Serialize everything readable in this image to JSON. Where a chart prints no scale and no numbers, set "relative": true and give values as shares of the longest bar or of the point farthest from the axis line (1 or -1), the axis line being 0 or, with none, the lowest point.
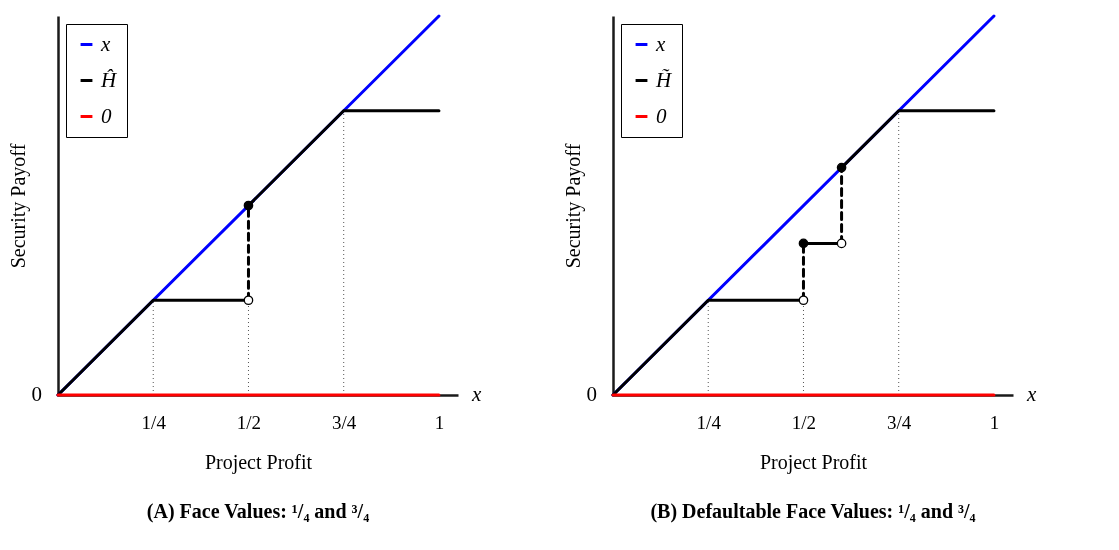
{
  "chart_data": [
    {
      "type": "line",
      "title": "(A)   Face Values: ¹/₄ and ³/₄",
      "xlabel": "Project Profit",
      "ylabel": "Security Payoff",
      "relative": true,
      "xlim": [
        0,
        1.05
      ],
      "xticks": [
        {
          "value": 0.25,
          "label": "1/4"
        },
        {
          "value": 0.5,
          "label": "1/2"
        },
        {
          "value": 0.75,
          "label": "3/4"
        },
        1
      ],
      "legend": "top left",
      "annotations": [
        "0",
        "x"
      ],
      "ref_lines": [
        {
          "axis": "x",
          "value": 0.25,
          "line_style": "dotted"
        },
        {
          "axis": "x",
          "value": 0.5,
          "line_style": "dotted"
        },
        {
          "axis": "x",
          "value": 0.75,
          "line_style": "dotted"
        }
      ],
      "series": [
        {
          "name": "x",
          "color": "#0000ff",
          "type": "line",
          "x": [
            0,
            1
          ],
          "values": [
            0,
            1
          ]
        },
        {
          "name": "Ĥ",
          "color": "#000000",
          "type": "line",
          "x": [
            0,
            0.25,
            0.5
          ],
          "values": [
            0,
            0.25,
            0.25
          ]
        },
        {
          "color": "#000000",
          "type": "line",
          "x": [
            0.5,
            0.75,
            1
          ],
          "values": [
            0.5,
            0.75,
            0.75
          ]
        },
        {
          "name": "0",
          "color": "#ff0000",
          "type": "line",
          "x": [
            0,
            1
          ],
          "values": [
            0,
            0
          ]
        },
        {
          "color": "#000000",
          "type": "line",
          "line_style": "dashed",
          "x": [
            0.5,
            0.5
          ],
          "values": [
            0.25,
            0.5
          ]
        },
        {
          "color": "#000000",
          "type": "scatter",
          "marker": "circle",
          "x": [
            0.5
          ],
          "values": [
            0.5
          ]
        },
        {
          "color": "#ffffff",
          "type": "scatter",
          "marker": "circle",
          "x": [
            0.5
          ],
          "values": [
            0.25
          ]
        }
      ]
    },
    {
      "type": "line",
      "title": "(B)   Defaultable Face Values: ¹/₄ and ³/₄",
      "xlabel": "Project Profit",
      "ylabel": "Security Payoff",
      "relative": true,
      "xlim": [
        0,
        1.05
      ],
      "xticks": [
        {
          "value": 0.25,
          "label": "1/4"
        },
        {
          "value": 0.5,
          "label": "1/2"
        },
        {
          "value": 0.75,
          "label": "3/4"
        },
        1
      ],
      "legend": "top left",
      "annotations": [
        "0",
        "x"
      ],
      "ref_lines": [
        {
          "axis": "x",
          "value": 0.25,
          "line_style": "dotted"
        },
        {
          "axis": "x",
          "value": 0.5,
          "line_style": "dotted"
        },
        {
          "axis": "x",
          "value": 0.75,
          "line_style": "dotted"
        }
      ],
      "series": [
        {
          "name": "x",
          "color": "#0000ff",
          "type": "line",
          "x": [
            0,
            1
          ],
          "values": [
            0,
            1
          ]
        },
        {
          "name": "H̃",
          "color": "#000000",
          "type": "line",
          "x": [
            0,
            0.25,
            0.5
          ],
          "values": [
            0,
            0.25,
            0.25
          ]
        },
        {
          "color": "#000000",
          "type": "line",
          "x": [
            0.5,
            0.6
          ],
          "values": [
            0.4,
            0.4
          ]
        },
        {
          "color": "#000000",
          "type": "line",
          "x": [
            0.6,
            0.75,
            1
          ],
          "values": [
            0.6,
            0.75,
            0.75
          ]
        },
        {
          "name": "0",
          "color": "#ff0000",
          "type": "line",
          "x": [
            0,
            1
          ],
          "values": [
            0,
            0
          ]
        },
        {
          "color": "#000000",
          "type": "line",
          "line_style": "dashed",
          "x": [
            0.5,
            0.5
          ],
          "values": [
            0.25,
            0.4
          ]
        },
        {
          "color": "#000000",
          "type": "line",
          "line_style": "dashed",
          "x": [
            0.6,
            0.6
          ],
          "values": [
            0.4,
            0.6
          ]
        },
        {
          "color": "#000000",
          "type": "scatter",
          "marker": "circle",
          "x": [
            0.5,
            0.6
          ],
          "values": [
            0.4,
            0.6
          ]
        },
        {
          "color": "#ffffff",
          "type": "scatter",
          "marker": "circle",
          "x": [
            0.5,
            0.6
          ],
          "values": [
            0.25,
            0.4
          ]
        }
      ]
    }
  ]
}
